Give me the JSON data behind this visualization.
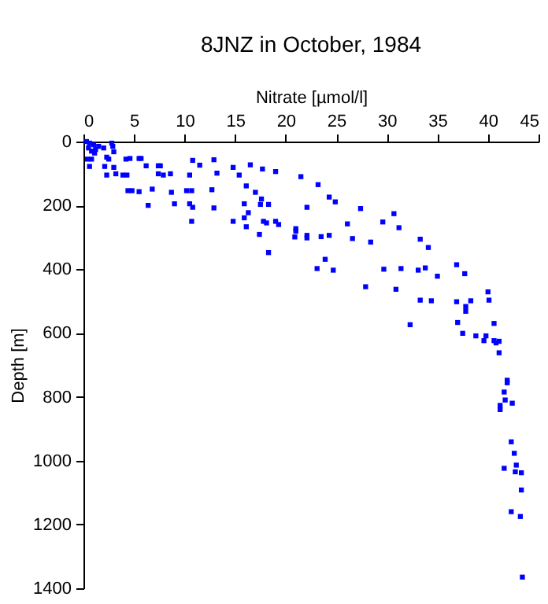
{
  "chart_data": {
    "type": "scatter",
    "title": "8JNZ in October, 1984",
    "xlabel": "Nitrate [µmol/l]",
    "ylabel": "Depth [m]",
    "xlim": [
      0,
      45
    ],
    "xticks": [
      0,
      5,
      10,
      15,
      20,
      25,
      30,
      35,
      40,
      45
    ],
    "ylim": [
      1400,
      0
    ],
    "yticks": [
      0,
      200,
      400,
      600,
      800,
      1000,
      1200,
      1400
    ],
    "grid": false,
    "marker": "square",
    "x": [
      0.3,
      0.6,
      1.0,
      1.5,
      2.0,
      0.8,
      1.2,
      0.5,
      2.8,
      2.9,
      3.0,
      0.4,
      0.8,
      1.1,
      2.3,
      2.5,
      4.2,
      4.6,
      5.5,
      5.7,
      0.6,
      2.1,
      3.0,
      6.2,
      7.4,
      7.6,
      2.3,
      3.2,
      3.9,
      4.3,
      7.4,
      7.9,
      8.6,
      10.8,
      11.5,
      12.9,
      13.2,
      10.5,
      4.4,
      4.8,
      5.5,
      6.8,
      8.7,
      10.2,
      10.7,
      12.7,
      6.4,
      9.0,
      10.5,
      10.8,
      12.9,
      10.7,
      14.8,
      15.4,
      16.5,
      16.1,
      17.7,
      17.0,
      19.0,
      21.5,
      15.9,
      17.6,
      17.5,
      16.3,
      18.3,
      14.8,
      15.9,
      16.1,
      17.8,
      18.1,
      19.0,
      19.3,
      17.4,
      18.3,
      22.1,
      21.0,
      20.9,
      22.1,
      23.2,
      24.3,
      24.9,
      27.4,
      26.1,
      29.6,
      30.7,
      31.2,
      21.0,
      22.1,
      23.5,
      24.3,
      26.6,
      28.4,
      33.3,
      34.1,
      23.9,
      23.1,
      24.7,
      29.7,
      31.4,
      33.1,
      33.8,
      35.0,
      36.9,
      37.7,
      27.9,
      30.9,
      33.3,
      34.4,
      36.9,
      37.8,
      38.3,
      40.0,
      40.1,
      32.3,
      37.0,
      37.8,
      40.6,
      37.5,
      38.8,
      39.8,
      39.6,
      40.6,
      41.1,
      40.8,
      41.1,
      41.9,
      41.9,
      41.6,
      41.7,
      42.4,
      41.2,
      41.2,
      42.3,
      42.6,
      42.8,
      41.6,
      42.7,
      43.3,
      43.3,
      42.3,
      43.2,
      43.4
    ],
    "series": [
      {
        "color": "#0000ff",
        "values": [
          0,
          5,
          10,
          15,
          20,
          30,
          25,
          20,
          5,
          15,
          32,
          55,
          55,
          36,
          49,
          55,
          55,
          53,
          53,
          53,
          78,
          78,
          81,
          76,
          76,
          76,
          105,
          101,
          105,
          105,
          101,
          105,
          101,
          59,
          74,
          57,
          99,
          105,
          154,
          154,
          157,
          149,
          159,
          154,
          154,
          151,
          200,
          195,
          195,
          206,
          208,
          250,
          81,
          105,
          73,
          139,
          86,
          159,
          94,
          110,
          195,
          180,
          197,
          223,
          197,
          250,
          239,
          267,
          250,
          255,
          250,
          260,
          291,
          348,
          206,
          273,
          299,
          294,
          135,
          174,
          189,
          210,
          258,
          252,
          226,
          270,
          281,
          302,
          298,
          294,
          304,
          315,
          306,
          332,
          369,
          398,
          403,
          400,
          398,
          403,
          396,
          422,
          386,
          414,
          455,
          463,
          497,
          499,
          502,
          517,
          499,
          471,
          497,
          574,
          567,
          532,
          570,
          601,
          609,
          609,
          624,
          624,
          626,
          631,
          662,
          748,
          756,
          785,
          810,
          820,
          827,
          840,
          941,
          977,
          1014,
          1024,
          1035,
          1038,
          1092,
          1160,
          1175,
          1365
        ]
      }
    ]
  }
}
